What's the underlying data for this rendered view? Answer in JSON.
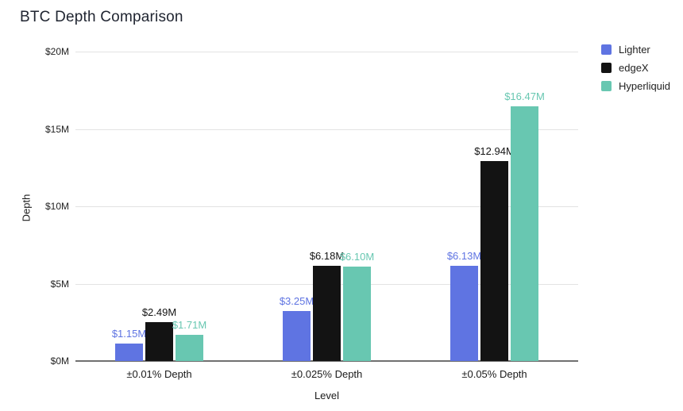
{
  "chart_data": {
    "type": "bar",
    "title": "BTC Depth Comparison",
    "xlabel": "Level",
    "ylabel": "Depth",
    "categories": [
      "±0.01% Depth",
      "±0.025% Depth",
      "±0.05% Depth"
    ],
    "series": [
      {
        "name": "Lighter",
        "color": "#5f74e2",
        "values": [
          1.15,
          3.25,
          6.13
        ],
        "labels": [
          "$1.15M",
          "$3.25M",
          "$6.13M"
        ]
      },
      {
        "name": "edgeX",
        "color": "#131313",
        "values": [
          2.49,
          6.18,
          12.94
        ],
        "labels": [
          "$2.49M",
          "$6.18M",
          "$12.94M"
        ]
      },
      {
        "name": "Hyperliquid",
        "color": "#68c7b1",
        "values": [
          1.71,
          6.1,
          16.47
        ],
        "labels": [
          "$1.71M",
          "$6.10M",
          "$16.47M"
        ]
      }
    ],
    "ylim": [
      0,
      20
    ],
    "yticks": [
      "$0M",
      "$5M",
      "$10M",
      "$15M",
      "$20M"
    ],
    "grid": true,
    "legend_position": "right",
    "colors": {
      "grid": "#e3e3e3",
      "axis": "#707070",
      "title_text": "#1f2430"
    }
  }
}
